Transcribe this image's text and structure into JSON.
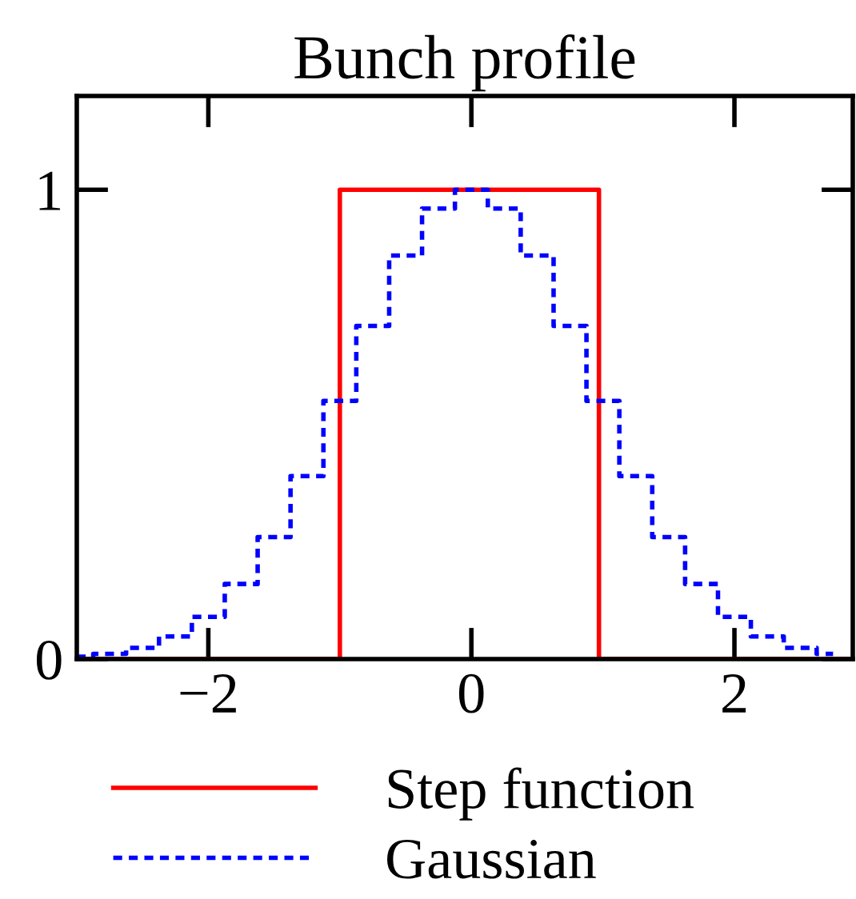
{
  "chart_data": {
    "type": "line",
    "title": "Bunch profile",
    "xlim": [
      -3,
      2.9
    ],
    "ylim": [
      0,
      1.2
    ],
    "xticks": [
      -2,
      0,
      2
    ],
    "yticks": [
      0,
      1
    ],
    "grid": false,
    "legend": "bottom",
    "series": [
      {
        "name": "Step function",
        "color": "#ff0000",
        "line_style": "solid",
        "x": [
          -3,
          -1,
          -1,
          0.97,
          0.97,
          2.9
        ],
        "values": [
          0,
          0,
          1,
          1,
          0,
          0
        ]
      },
      {
        "name": "Gaussian",
        "type": "step",
        "color": "#0000ff",
        "line_style": "dotted",
        "x": [
          -3,
          -2.75,
          -2.5,
          -2.25,
          -2,
          -1.75,
          -1.5,
          -1.25,
          -1,
          -0.75,
          -0.5,
          -0.25,
          0,
          0.25,
          0.5,
          0.75,
          1,
          1.25,
          1.5,
          1.75,
          2,
          2.25,
          2.5,
          2.75
        ],
        "values": [
          0.005,
          0.011,
          0.024,
          0.048,
          0.09,
          0.16,
          0.26,
          0.39,
          0.55,
          0.71,
          0.86,
          0.96,
          1,
          0.96,
          0.86,
          0.71,
          0.55,
          0.39,
          0.26,
          0.16,
          0.09,
          0.048,
          0.024,
          0.011
        ]
      }
    ]
  }
}
